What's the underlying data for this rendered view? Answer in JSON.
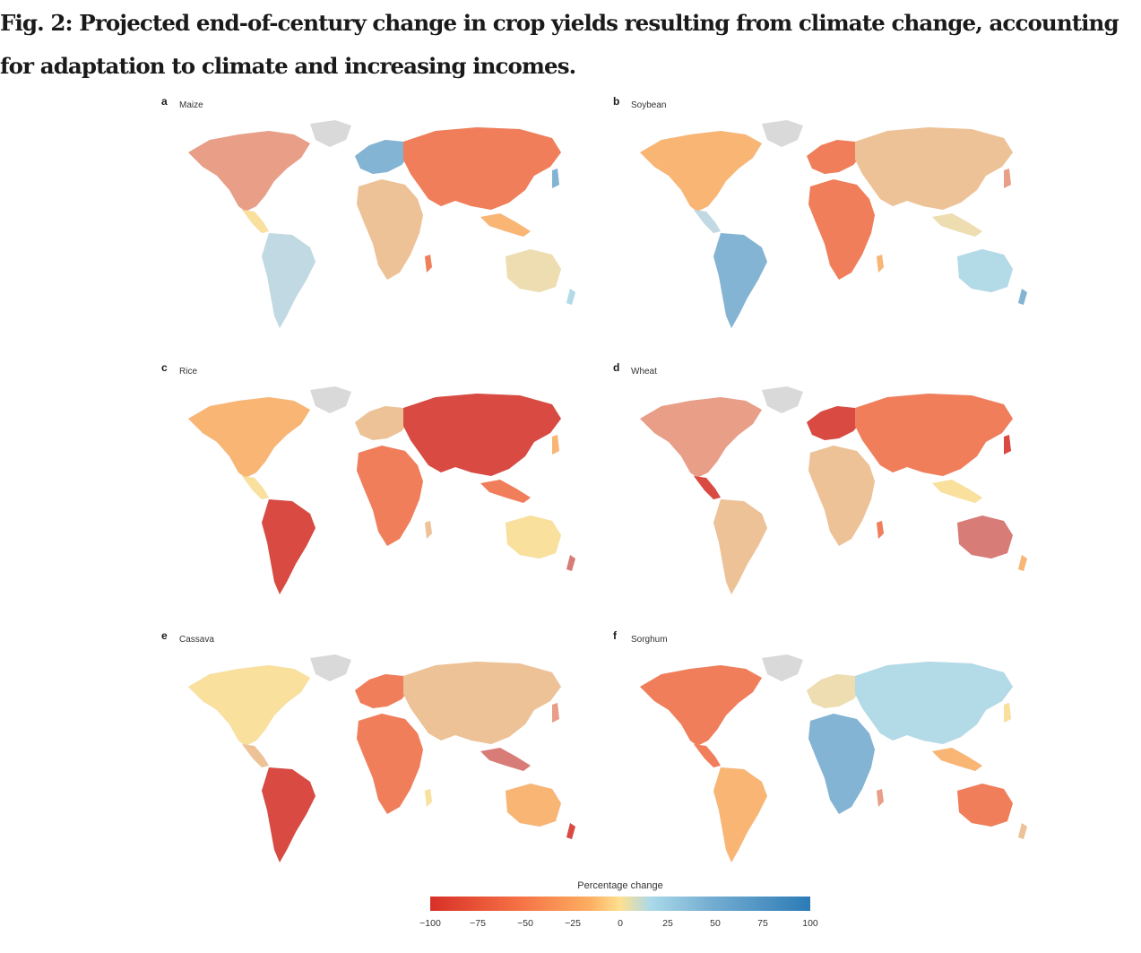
{
  "figure": {
    "title": "Fig. 2: Projected end-of-century change in crop yields resulting from climate change, accounting for adaptation to climate and increasing incomes."
  },
  "panels": [
    {
      "letter": "a",
      "crop": "Maize",
      "dominant": "mixed"
    },
    {
      "letter": "b",
      "crop": "Soybean",
      "dominant": "mixed"
    },
    {
      "letter": "c",
      "crop": "Rice",
      "dominant": "loss"
    },
    {
      "letter": "d",
      "crop": "Wheat",
      "dominant": "loss"
    },
    {
      "letter": "e",
      "crop": "Cassava",
      "dominant": "loss"
    },
    {
      "letter": "f",
      "crop": "Sorghum",
      "dominant": "mixed"
    }
  ],
  "legend": {
    "title": "Percentage change",
    "ticks": [
      "−100",
      "−75",
      "−50",
      "−25",
      "0",
      "25",
      "50",
      "75",
      "100"
    ],
    "range": [
      -100,
      100
    ],
    "colors": {
      "low": "#d73027",
      "mid": "#fee090",
      "high": "#2c7bb6",
      "land": "#d9d9d9"
    }
  }
}
